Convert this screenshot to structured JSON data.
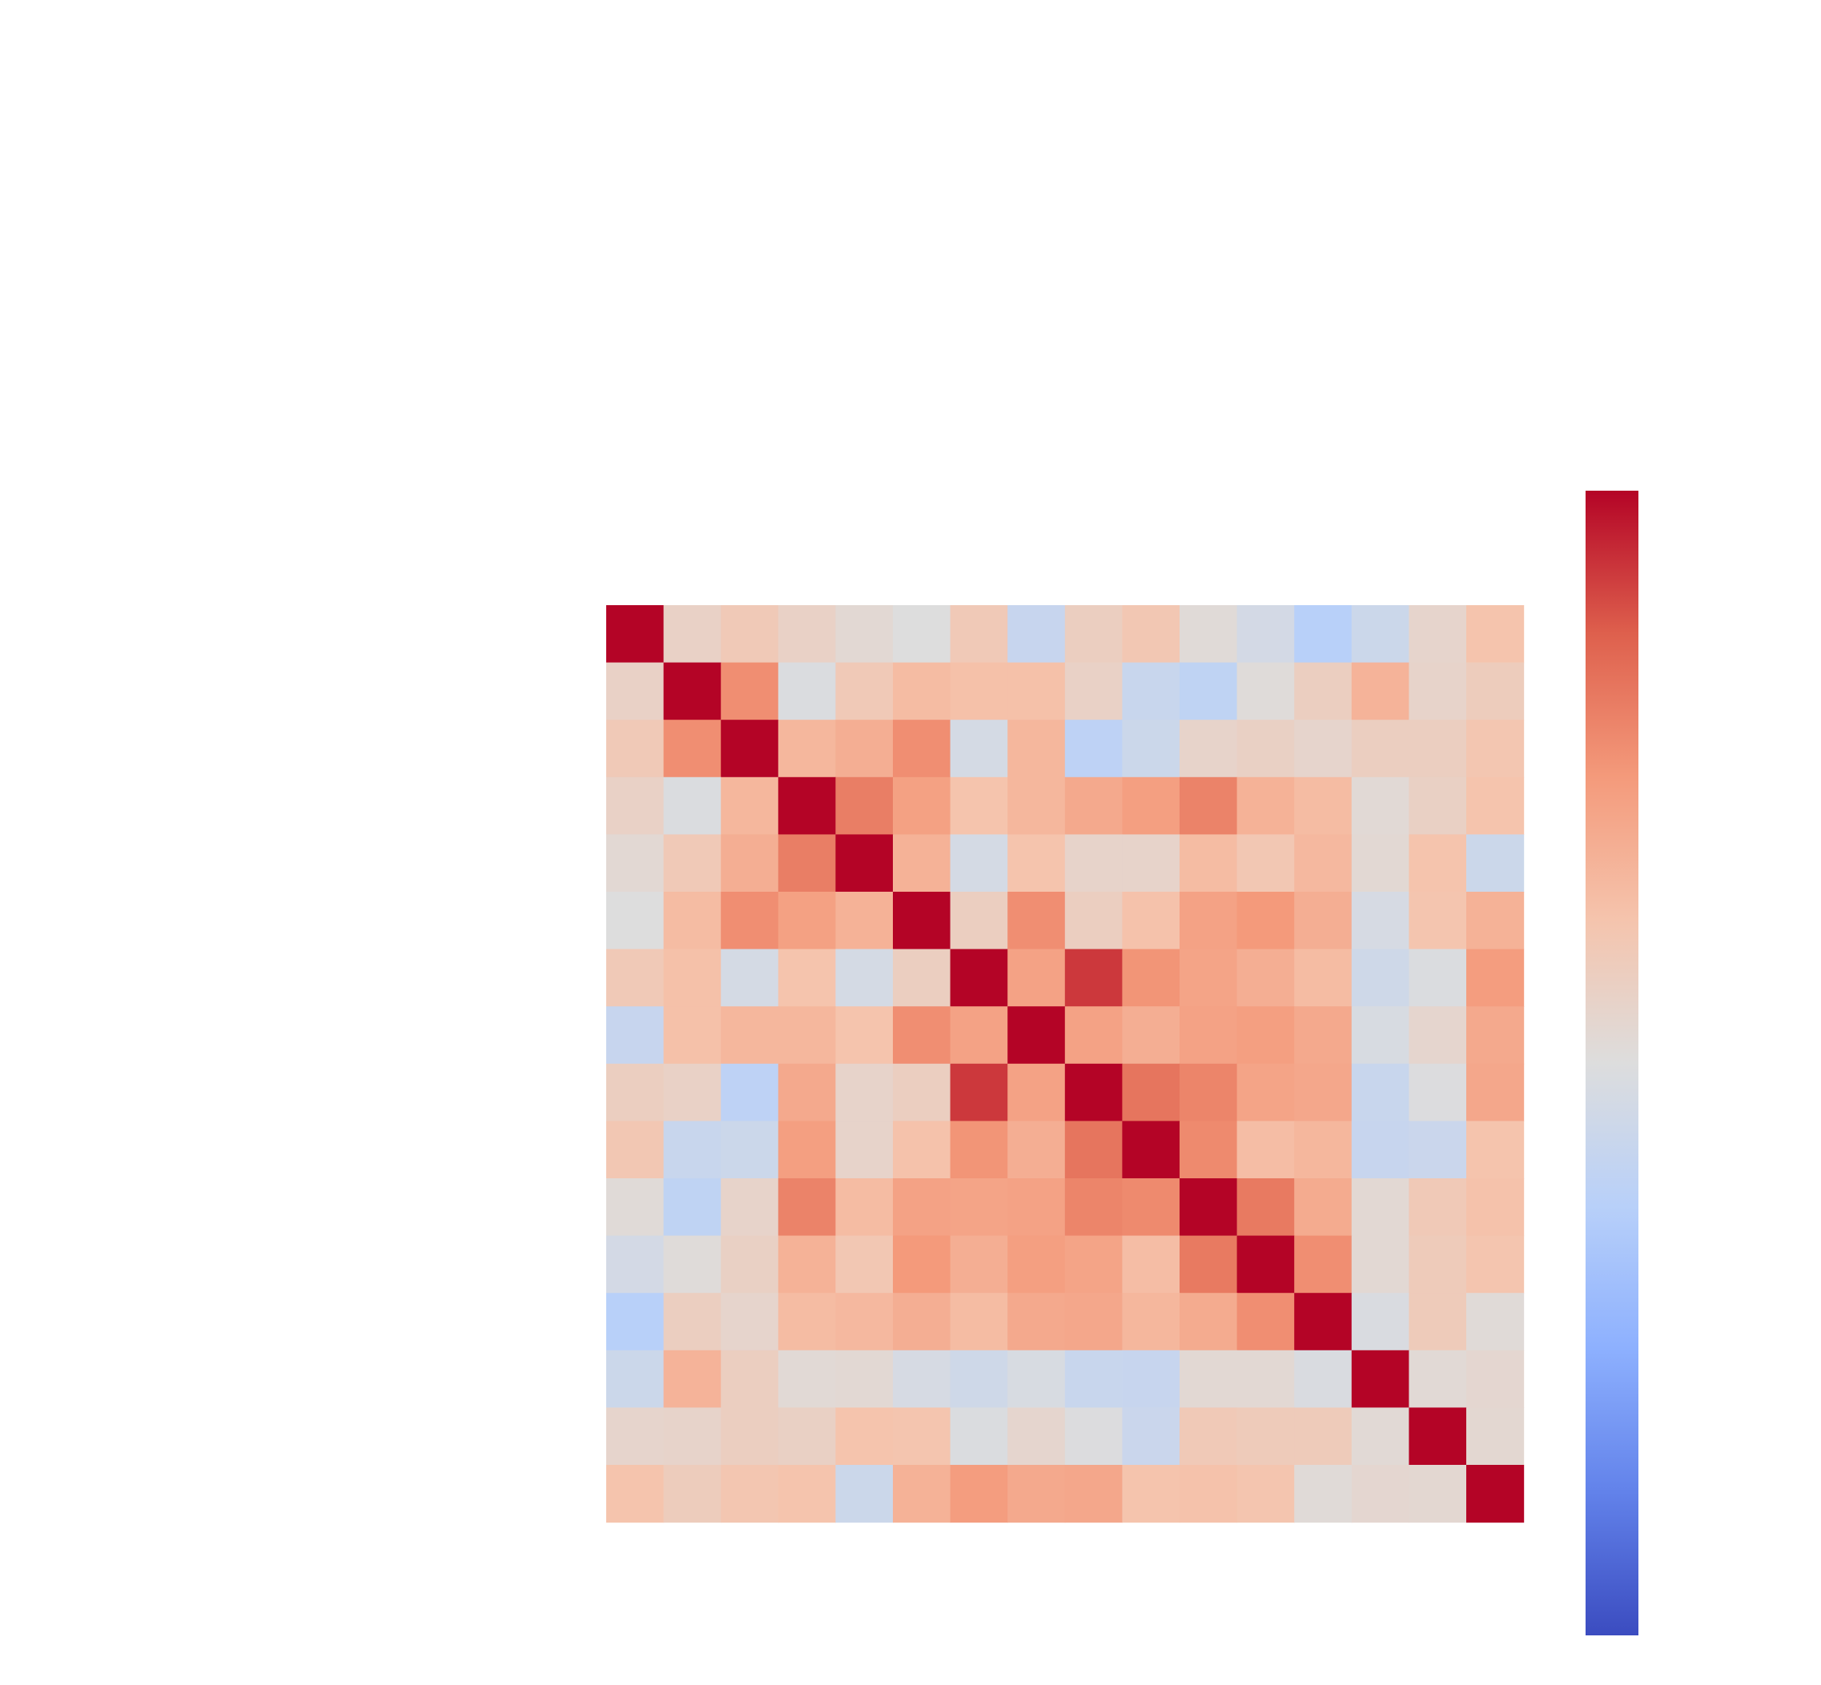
{
  "chart_data": {
    "type": "heatmap",
    "title": "",
    "xlabel": "",
    "ylabel": "",
    "size": 16,
    "colormap": "coolwarm",
    "vlim": [
      -1,
      1
    ],
    "colorbar": {
      "orientation": "vertical",
      "placement": "right",
      "tick_labels_visible": false
    },
    "tick_labels_visible": false,
    "matrix": [
      [
        1.0,
        0.12,
        0.2,
        0.12,
        0.05,
        0.0,
        0.2,
        -0.15,
        0.15,
        0.22,
        0.03,
        -0.07,
        -0.25,
        -0.12,
        0.09,
        0.25
      ],
      [
        0.12,
        1.0,
        0.55,
        -0.02,
        0.2,
        0.3,
        0.27,
        0.27,
        0.12,
        -0.14,
        -0.2,
        0.02,
        0.15,
        0.35,
        0.1,
        0.17
      ],
      [
        0.2,
        0.55,
        1.0,
        0.33,
        0.38,
        0.55,
        -0.06,
        0.33,
        -0.21,
        -0.12,
        0.1,
        0.13,
        0.09,
        0.15,
        0.15,
        0.23
      ],
      [
        0.12,
        -0.02,
        0.33,
        1.0,
        0.62,
        0.46,
        0.25,
        0.33,
        0.41,
        0.47,
        0.6,
        0.36,
        0.3,
        0.04,
        0.13,
        0.25
      ],
      [
        0.05,
        0.2,
        0.38,
        0.62,
        1.0,
        0.36,
        -0.06,
        0.25,
        0.1,
        0.1,
        0.3,
        0.22,
        0.32,
        0.05,
        0.25,
        -0.12
      ],
      [
        0.0,
        0.3,
        0.55,
        0.46,
        0.36,
        1.0,
        0.15,
        0.55,
        0.15,
        0.26,
        0.45,
        0.5,
        0.38,
        -0.05,
        0.24,
        0.36
      ],
      [
        0.2,
        0.27,
        -0.06,
        0.25,
        -0.06,
        0.15,
        1.0,
        0.45,
        0.86,
        0.52,
        0.44,
        0.38,
        0.3,
        -0.1,
        -0.02,
        0.48
      ],
      [
        -0.15,
        0.27,
        0.33,
        0.33,
        0.25,
        0.55,
        0.45,
        1.0,
        0.45,
        0.38,
        0.45,
        0.47,
        0.41,
        -0.04,
        0.08,
        0.41
      ],
      [
        0.15,
        0.12,
        -0.21,
        0.41,
        0.1,
        0.15,
        0.86,
        0.45,
        1.0,
        0.66,
        0.59,
        0.44,
        0.42,
        -0.14,
        -0.01,
        0.42
      ],
      [
        0.22,
        -0.14,
        -0.12,
        0.47,
        0.1,
        0.26,
        0.52,
        0.38,
        0.66,
        1.0,
        0.57,
        0.29,
        0.33,
        -0.15,
        -0.13,
        0.25
      ],
      [
        0.03,
        -0.2,
        0.1,
        0.6,
        0.3,
        0.45,
        0.44,
        0.45,
        0.59,
        0.57,
        1.0,
        0.64,
        0.4,
        0.05,
        0.2,
        0.26
      ],
      [
        -0.07,
        0.02,
        0.13,
        0.36,
        0.22,
        0.5,
        0.38,
        0.47,
        0.44,
        0.29,
        0.64,
        1.0,
        0.55,
        0.05,
        0.18,
        0.24
      ],
      [
        -0.25,
        0.15,
        0.09,
        0.3,
        0.32,
        0.38,
        0.3,
        0.41,
        0.42,
        0.33,
        0.4,
        0.55,
        1.0,
        -0.03,
        0.18,
        0.03
      ],
      [
        -0.12,
        0.35,
        0.15,
        0.04,
        0.05,
        -0.05,
        -0.1,
        -0.04,
        -0.14,
        -0.15,
        0.05,
        0.05,
        -0.03,
        1.0,
        0.04,
        0.07
      ],
      [
        0.09,
        0.1,
        0.15,
        0.13,
        0.25,
        0.24,
        -0.02,
        0.08,
        -0.01,
        -0.13,
        0.2,
        0.18,
        0.18,
        0.04,
        1.0,
        0.06
      ],
      [
        0.25,
        0.17,
        0.23,
        0.25,
        -0.12,
        0.36,
        0.48,
        0.41,
        0.42,
        0.25,
        0.26,
        0.24,
        0.03,
        0.07,
        0.06,
        1.0
      ]
    ]
  }
}
